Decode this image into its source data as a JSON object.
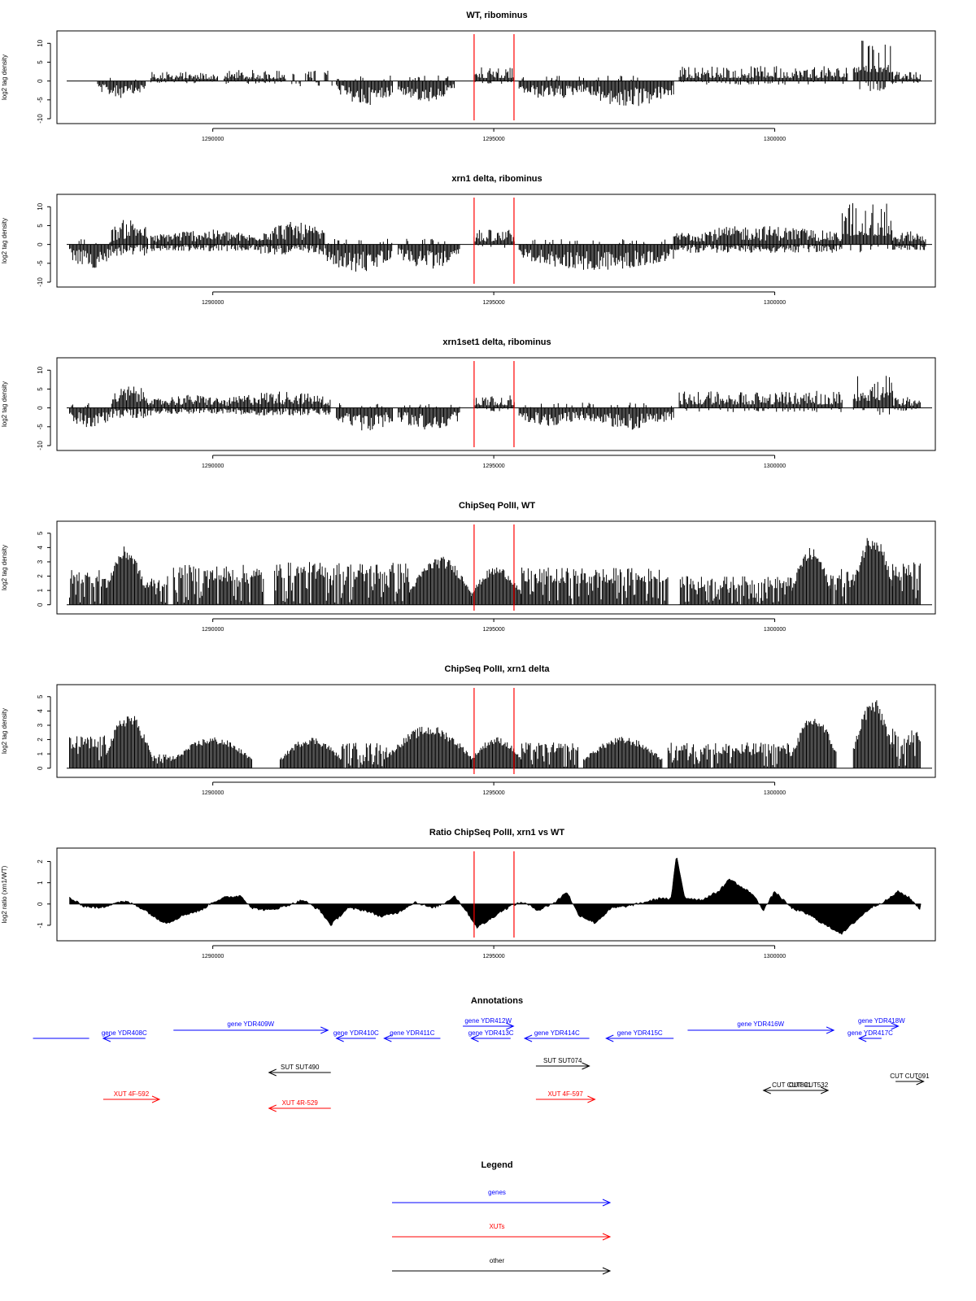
{
  "figure": {
    "x_ticks": [
      "1290000",
      "1295000",
      "1300000"
    ],
    "tick_values": [
      1290000,
      1295000,
      1300000
    ],
    "x_range": [
      1287400,
      1302800
    ],
    "red_markers": [
      1294650,
      1295360
    ]
  },
  "chart_data": [
    {
      "type": "bar",
      "title": "WT, ribominus",
      "ylabel": "log2 tag density",
      "ylim": [
        -10,
        12
      ],
      "yticks": [
        10,
        5,
        0,
        -5,
        -10
      ],
      "ytick_labels": [
        "10",
        "5",
        "0",
        "-5",
        "-10"
      ],
      "segments": [
        {
          "x": [
            1287450,
            1287900
          ],
          "y": -3.2,
          "pattern": "neg"
        },
        {
          "x": [
            1287950,
            1288800
          ],
          "y": 4.5,
          "pattern": "neg"
        },
        {
          "x": [
            1288900,
            1290100
          ],
          "y": 2.5,
          "pattern": "pos"
        },
        {
          "x": [
            1290200,
            1291300
          ],
          "y": 3.0,
          "pattern": "pos"
        },
        {
          "x": [
            1291350,
            1292150
          ],
          "y": 2.8,
          "pattern": "sparse"
        },
        {
          "x": [
            1292200,
            1293200
          ],
          "y": 6.5,
          "pattern": "neg"
        },
        {
          "x": [
            1293300,
            1294300
          ],
          "y": 5.5,
          "pattern": "neg"
        },
        {
          "x": [
            1294650,
            1295350
          ],
          "y": 4.0,
          "pattern": "pos"
        },
        {
          "x": [
            1295450,
            1296600
          ],
          "y": 5.0,
          "pattern": "neg"
        },
        {
          "x": [
            1296600,
            1298200
          ],
          "y": 7.0,
          "pattern": "neg"
        },
        {
          "x": [
            1298300,
            1301300
          ],
          "y": 4.0,
          "pattern": "pos"
        },
        {
          "x": [
            1301400,
            1302100
          ],
          "y": 11.5,
          "pattern": "pos"
        },
        {
          "x": [
            1302100,
            1302600
          ],
          "y": 2.5,
          "pattern": "pos"
        }
      ]
    },
    {
      "type": "bar",
      "title": "xrn1 delta, ribominus",
      "ylabel": "log2 tag density",
      "ylim": [
        -10,
        12
      ],
      "yticks": [
        10,
        5,
        0,
        -5,
        -10
      ],
      "ytick_labels": [
        "10",
        "5",
        "0",
        "-5",
        "-10"
      ],
      "segments": [
        {
          "x": [
            1287450,
            1288200
          ],
          "y": 6.5,
          "pattern": "neg"
        },
        {
          "x": [
            1288200,
            1288850
          ],
          "y": 7.0,
          "pattern": "both"
        },
        {
          "x": [
            1288900,
            1290800
          ],
          "y": 4.0,
          "pattern": "both"
        },
        {
          "x": [
            1290800,
            1292000
          ],
          "y": 6.0,
          "pattern": "both"
        },
        {
          "x": [
            1292000,
            1293200
          ],
          "y": 7.5,
          "pattern": "neg"
        },
        {
          "x": [
            1293300,
            1294400
          ],
          "y": 6.5,
          "pattern": "neg"
        },
        {
          "x": [
            1294650,
            1295380
          ],
          "y": 4.0,
          "pattern": "pos"
        },
        {
          "x": [
            1295450,
            1298200
          ],
          "y": 7.0,
          "pattern": "neg"
        },
        {
          "x": [
            1298200,
            1301200
          ],
          "y": 5.0,
          "pattern": "both"
        },
        {
          "x": [
            1301200,
            1302100
          ],
          "y": 11.5,
          "pattern": "pos"
        },
        {
          "x": [
            1302100,
            1302700
          ],
          "y": 3.5,
          "pattern": "both"
        }
      ]
    },
    {
      "type": "bar",
      "title": "xrn1set1 delta, ribominus",
      "ylabel": "log2 tag density",
      "ylim": [
        -10,
        12
      ],
      "yticks": [
        10,
        5,
        0,
        -5,
        -10
      ],
      "ytick_labels": [
        "10",
        "5",
        "0",
        "-5",
        "-10"
      ],
      "segments": [
        {
          "x": [
            1287450,
            1288200
          ],
          "y": 5.5,
          "pattern": "neg"
        },
        {
          "x": [
            1288200,
            1288900
          ],
          "y": 6.0,
          "pattern": "both"
        },
        {
          "x": [
            1288900,
            1290300
          ],
          "y": 3.5,
          "pattern": "both"
        },
        {
          "x": [
            1290300,
            1292100
          ],
          "y": 4.5,
          "pattern": "both"
        },
        {
          "x": [
            1292200,
            1293200
          ],
          "y": 6.5,
          "pattern": "neg"
        },
        {
          "x": [
            1293300,
            1294400
          ],
          "y": 6.0,
          "pattern": "neg"
        },
        {
          "x": [
            1294650,
            1295380
          ],
          "y": 3.5,
          "pattern": "pos"
        },
        {
          "x": [
            1295450,
            1296600
          ],
          "y": 5.0,
          "pattern": "neg"
        },
        {
          "x": [
            1296600,
            1298200
          ],
          "y": 6.0,
          "pattern": "neg"
        },
        {
          "x": [
            1298300,
            1301200
          ],
          "y": 4.5,
          "pattern": "pos"
        },
        {
          "x": [
            1301400,
            1302100
          ],
          "y": 9.0,
          "pattern": "pos"
        },
        {
          "x": [
            1302100,
            1302600
          ],
          "y": 3.0,
          "pattern": "pos"
        }
      ]
    },
    {
      "type": "bar",
      "title": "ChipSeq PolII, WT",
      "ylabel": "log2 tag density",
      "ylim": [
        -0.3,
        5.5
      ],
      "yticks": [
        0,
        1,
        2,
        3,
        4,
        5
      ],
      "ytick_labels": [
        "0",
        "1",
        "2",
        "3",
        "4",
        "5"
      ],
      "segments": [
        {
          "x": [
            1287450,
            1288100
          ],
          "y": 2.5,
          "pattern": "pos"
        },
        {
          "x": [
            1288100,
            1288800
          ],
          "y": 4.1,
          "pattern": "hump"
        },
        {
          "x": [
            1288800,
            1289200
          ],
          "y": 2.0,
          "pattern": "pos"
        },
        {
          "x": [
            1289300,
            1290900
          ],
          "y": 2.8,
          "pattern": "pos"
        },
        {
          "x": [
            1291100,
            1293500
          ],
          "y": 3.0,
          "pattern": "pos"
        },
        {
          "x": [
            1293500,
            1294600
          ],
          "y": 3.4,
          "pattern": "hump"
        },
        {
          "x": [
            1294600,
            1295500
          ],
          "y": 2.7,
          "pattern": "hump"
        },
        {
          "x": [
            1295500,
            1298100
          ],
          "y": 2.6,
          "pattern": "pos"
        },
        {
          "x": [
            1298300,
            1300300
          ],
          "y": 2.0,
          "pattern": "pos"
        },
        {
          "x": [
            1300300,
            1301000
          ],
          "y": 4.0,
          "pattern": "hump"
        },
        {
          "x": [
            1301000,
            1301400
          ],
          "y": 2.5,
          "pattern": "pos"
        },
        {
          "x": [
            1301400,
            1302100
          ],
          "y": 5.2,
          "pattern": "hump"
        },
        {
          "x": [
            1302100,
            1302600
          ],
          "y": 3.0,
          "pattern": "pos"
        }
      ]
    },
    {
      "type": "bar",
      "title": "ChipSeq PolII, xrn1 delta",
      "ylabel": "log2 tag density",
      "ylim": [
        -0.3,
        5.5
      ],
      "yticks": [
        0,
        1,
        2,
        3,
        4,
        5
      ],
      "ytick_labels": [
        "0",
        "1",
        "2",
        "3",
        "4",
        "5"
      ],
      "segments": [
        {
          "x": [
            1287450,
            1288100
          ],
          "y": 2.3,
          "pattern": "pos"
        },
        {
          "x": [
            1288100,
            1288900
          ],
          "y": 3.9,
          "pattern": "hump"
        },
        {
          "x": [
            1288900,
            1289300
          ],
          "y": 1.0,
          "pattern": "pos"
        },
        {
          "x": [
            1289300,
            1290700
          ],
          "y": 2.2,
          "pattern": "hump"
        },
        {
          "x": [
            1291200,
            1292300
          ],
          "y": 2.2,
          "pattern": "hump"
        },
        {
          "x": [
            1292300,
            1293100
          ],
          "y": 1.8,
          "pattern": "pos"
        },
        {
          "x": [
            1293100,
            1294600
          ],
          "y": 3.0,
          "pattern": "hump"
        },
        {
          "x": [
            1294600,
            1295500
          ],
          "y": 2.2,
          "pattern": "hump"
        },
        {
          "x": [
            1295500,
            1296500
          ],
          "y": 1.8,
          "pattern": "pos"
        },
        {
          "x": [
            1296600,
            1298000
          ],
          "y": 2.2,
          "pattern": "hump"
        },
        {
          "x": [
            1298100,
            1300300
          ],
          "y": 1.8,
          "pattern": "pos"
        },
        {
          "x": [
            1300300,
            1301100
          ],
          "y": 3.7,
          "pattern": "hump"
        },
        {
          "x": [
            1301400,
            1302100
          ],
          "y": 4.9,
          "pattern": "hump"
        },
        {
          "x": [
            1302100,
            1302600
          ],
          "y": 2.8,
          "pattern": "pos"
        }
      ]
    },
    {
      "type": "area",
      "title": "Ratio ChipSeq PolII, xrn1 vs WT",
      "ylabel": "log2 ratio (xrn1/WT)",
      "ylim": [
        -1.5,
        2.4
      ],
      "yticks": [
        -1,
        0,
        1,
        2
      ],
      "ytick_labels": [
        "-1",
        "0",
        "1",
        "2"
      ],
      "x": [
        1287450,
        1287700,
        1288000,
        1288300,
        1288500,
        1288800,
        1289000,
        1289200,
        1289500,
        1289800,
        1290000,
        1290200,
        1290500,
        1290700,
        1291000,
        1291300,
        1291600,
        1291900,
        1292100,
        1292400,
        1292700,
        1293000,
        1293300,
        1293600,
        1293900,
        1294100,
        1294300,
        1294500,
        1294700,
        1294900,
        1295100,
        1295300,
        1295500,
        1295800,
        1296100,
        1296300,
        1296500,
        1296800,
        1297100,
        1297400,
        1297700,
        1298000,
        1298150,
        1298250,
        1298400,
        1298700,
        1299000,
        1299200,
        1299400,
        1299600,
        1299800,
        1300000,
        1300300,
        1300600,
        1300900,
        1301200,
        1301400,
        1301700,
        1302000,
        1302200,
        1302400,
        1302600
      ],
      "values": [
        0.3,
        -0.1,
        -0.2,
        0.1,
        0.1,
        -0.3,
        -0.7,
        -0.9,
        -0.5,
        -0.3,
        0.1,
        0.3,
        0.4,
        -0.2,
        -0.3,
        -0.1,
        0.2,
        -0.3,
        -1.0,
        -0.2,
        -0.3,
        -0.6,
        -0.4,
        0.1,
        -0.2,
        0.0,
        0.4,
        -0.3,
        -1.1,
        -0.8,
        -0.4,
        -0.1,
        0.1,
        -0.3,
        0.1,
        0.6,
        -0.5,
        -0.9,
        -0.2,
        -0.1,
        0.1,
        0.3,
        0.2,
        2.3,
        0.3,
        0.2,
        0.6,
        1.2,
        0.8,
        0.5,
        -0.3,
        0.6,
        -0.2,
        -0.5,
        -1.0,
        -1.4,
        -0.9,
        -0.2,
        0.2,
        0.6,
        0.3,
        -0.3
      ]
    }
  ],
  "annotations": {
    "title": "Annotations",
    "features": [
      {
        "label": "",
        "class": "gene",
        "x1": 1286800,
        "x2": 1287800,
        "dir": "none",
        "row": 0
      },
      {
        "label": "gene YDR408C",
        "class": "gene",
        "x1": 1288050,
        "x2": 1288800,
        "dir": "left",
        "row": 0
      },
      {
        "label": "gene YDR409W",
        "class": "gene",
        "x1": 1289300,
        "x2": 1292050,
        "dir": "right",
        "row": -1
      },
      {
        "label": "gene YDR410C",
        "class": "gene",
        "x1": 1292200,
        "x2": 1292900,
        "dir": "left",
        "row": 0
      },
      {
        "label": "gene YDR411C",
        "class": "gene",
        "x1": 1293050,
        "x2": 1294050,
        "dir": "left",
        "row": 0
      },
      {
        "label": "gene YDR412W",
        "class": "gene",
        "x1": 1294450,
        "x2": 1295350,
        "dir": "right",
        "row": -2
      },
      {
        "label": "gene YDR413C",
        "class": "gene",
        "x1": 1294600,
        "x2": 1295300,
        "dir": "left",
        "row": 0
      },
      {
        "label": "gene YDR414C",
        "class": "gene",
        "x1": 1295550,
        "x2": 1296700,
        "dir": "left",
        "row": 0
      },
      {
        "label": "gene YDR415C",
        "class": "gene",
        "x1": 1297000,
        "x2": 1298200,
        "dir": "left",
        "row": 0
      },
      {
        "label": "gene YDR416W",
        "class": "gene",
        "x1": 1298450,
        "x2": 1301050,
        "dir": "right",
        "row": -1
      },
      {
        "label": "gene YDR418W",
        "class": "gene",
        "x1": 1301600,
        "x2": 1302200,
        "dir": "right",
        "row": -2
      },
      {
        "label": "gene YDR417C",
        "class": "gene",
        "x1": 1301500,
        "x2": 1301900,
        "dir": "left",
        "row": 0
      },
      {
        "label": "SUT SUT074",
        "class": "other",
        "x1": 1295750,
        "x2": 1296700,
        "dir": "right",
        "row": 3
      },
      {
        "label": "SUT SUT490",
        "class": "other",
        "x1": 1291000,
        "x2": 1292100,
        "dir": "left",
        "row": 4
      },
      {
        "label": "CUT CUT091",
        "class": "other",
        "x1": 1302150,
        "x2": 1302650,
        "dir": "right",
        "row": 5
      },
      {
        "label": "CUT CUT891",
        "class": "other",
        "x1": 1299800,
        "x2": 1300800,
        "dir": "left",
        "row": 6
      },
      {
        "label": "CUT CUT532",
        "class": "other",
        "x1": 1300250,
        "x2": 1300950,
        "dir": "right",
        "row": 6
      },
      {
        "label": "XUT 4F-592",
        "class": "xut",
        "x1": 1288050,
        "x2": 1289050,
        "dir": "right",
        "row": 7
      },
      {
        "label": "XUT 4F-597",
        "class": "xut",
        "x1": 1295750,
        "x2": 1296800,
        "dir": "right",
        "row": 7
      },
      {
        "label": "XUT 4R-529",
        "class": "xut",
        "x1": 1291000,
        "x2": 1292100,
        "dir": "left",
        "row": 8
      }
    ]
  },
  "legend": {
    "title": "Legend",
    "items": [
      {
        "label": "genes",
        "class": "gene"
      },
      {
        "label": "XUTs",
        "class": "xut"
      },
      {
        "label": "other",
        "class": "other"
      }
    ]
  },
  "colors": {
    "gene": "#0000ff",
    "xut": "#ff0000",
    "other": "#000000",
    "marker": "#ff0000",
    "bars": "#000000"
  }
}
